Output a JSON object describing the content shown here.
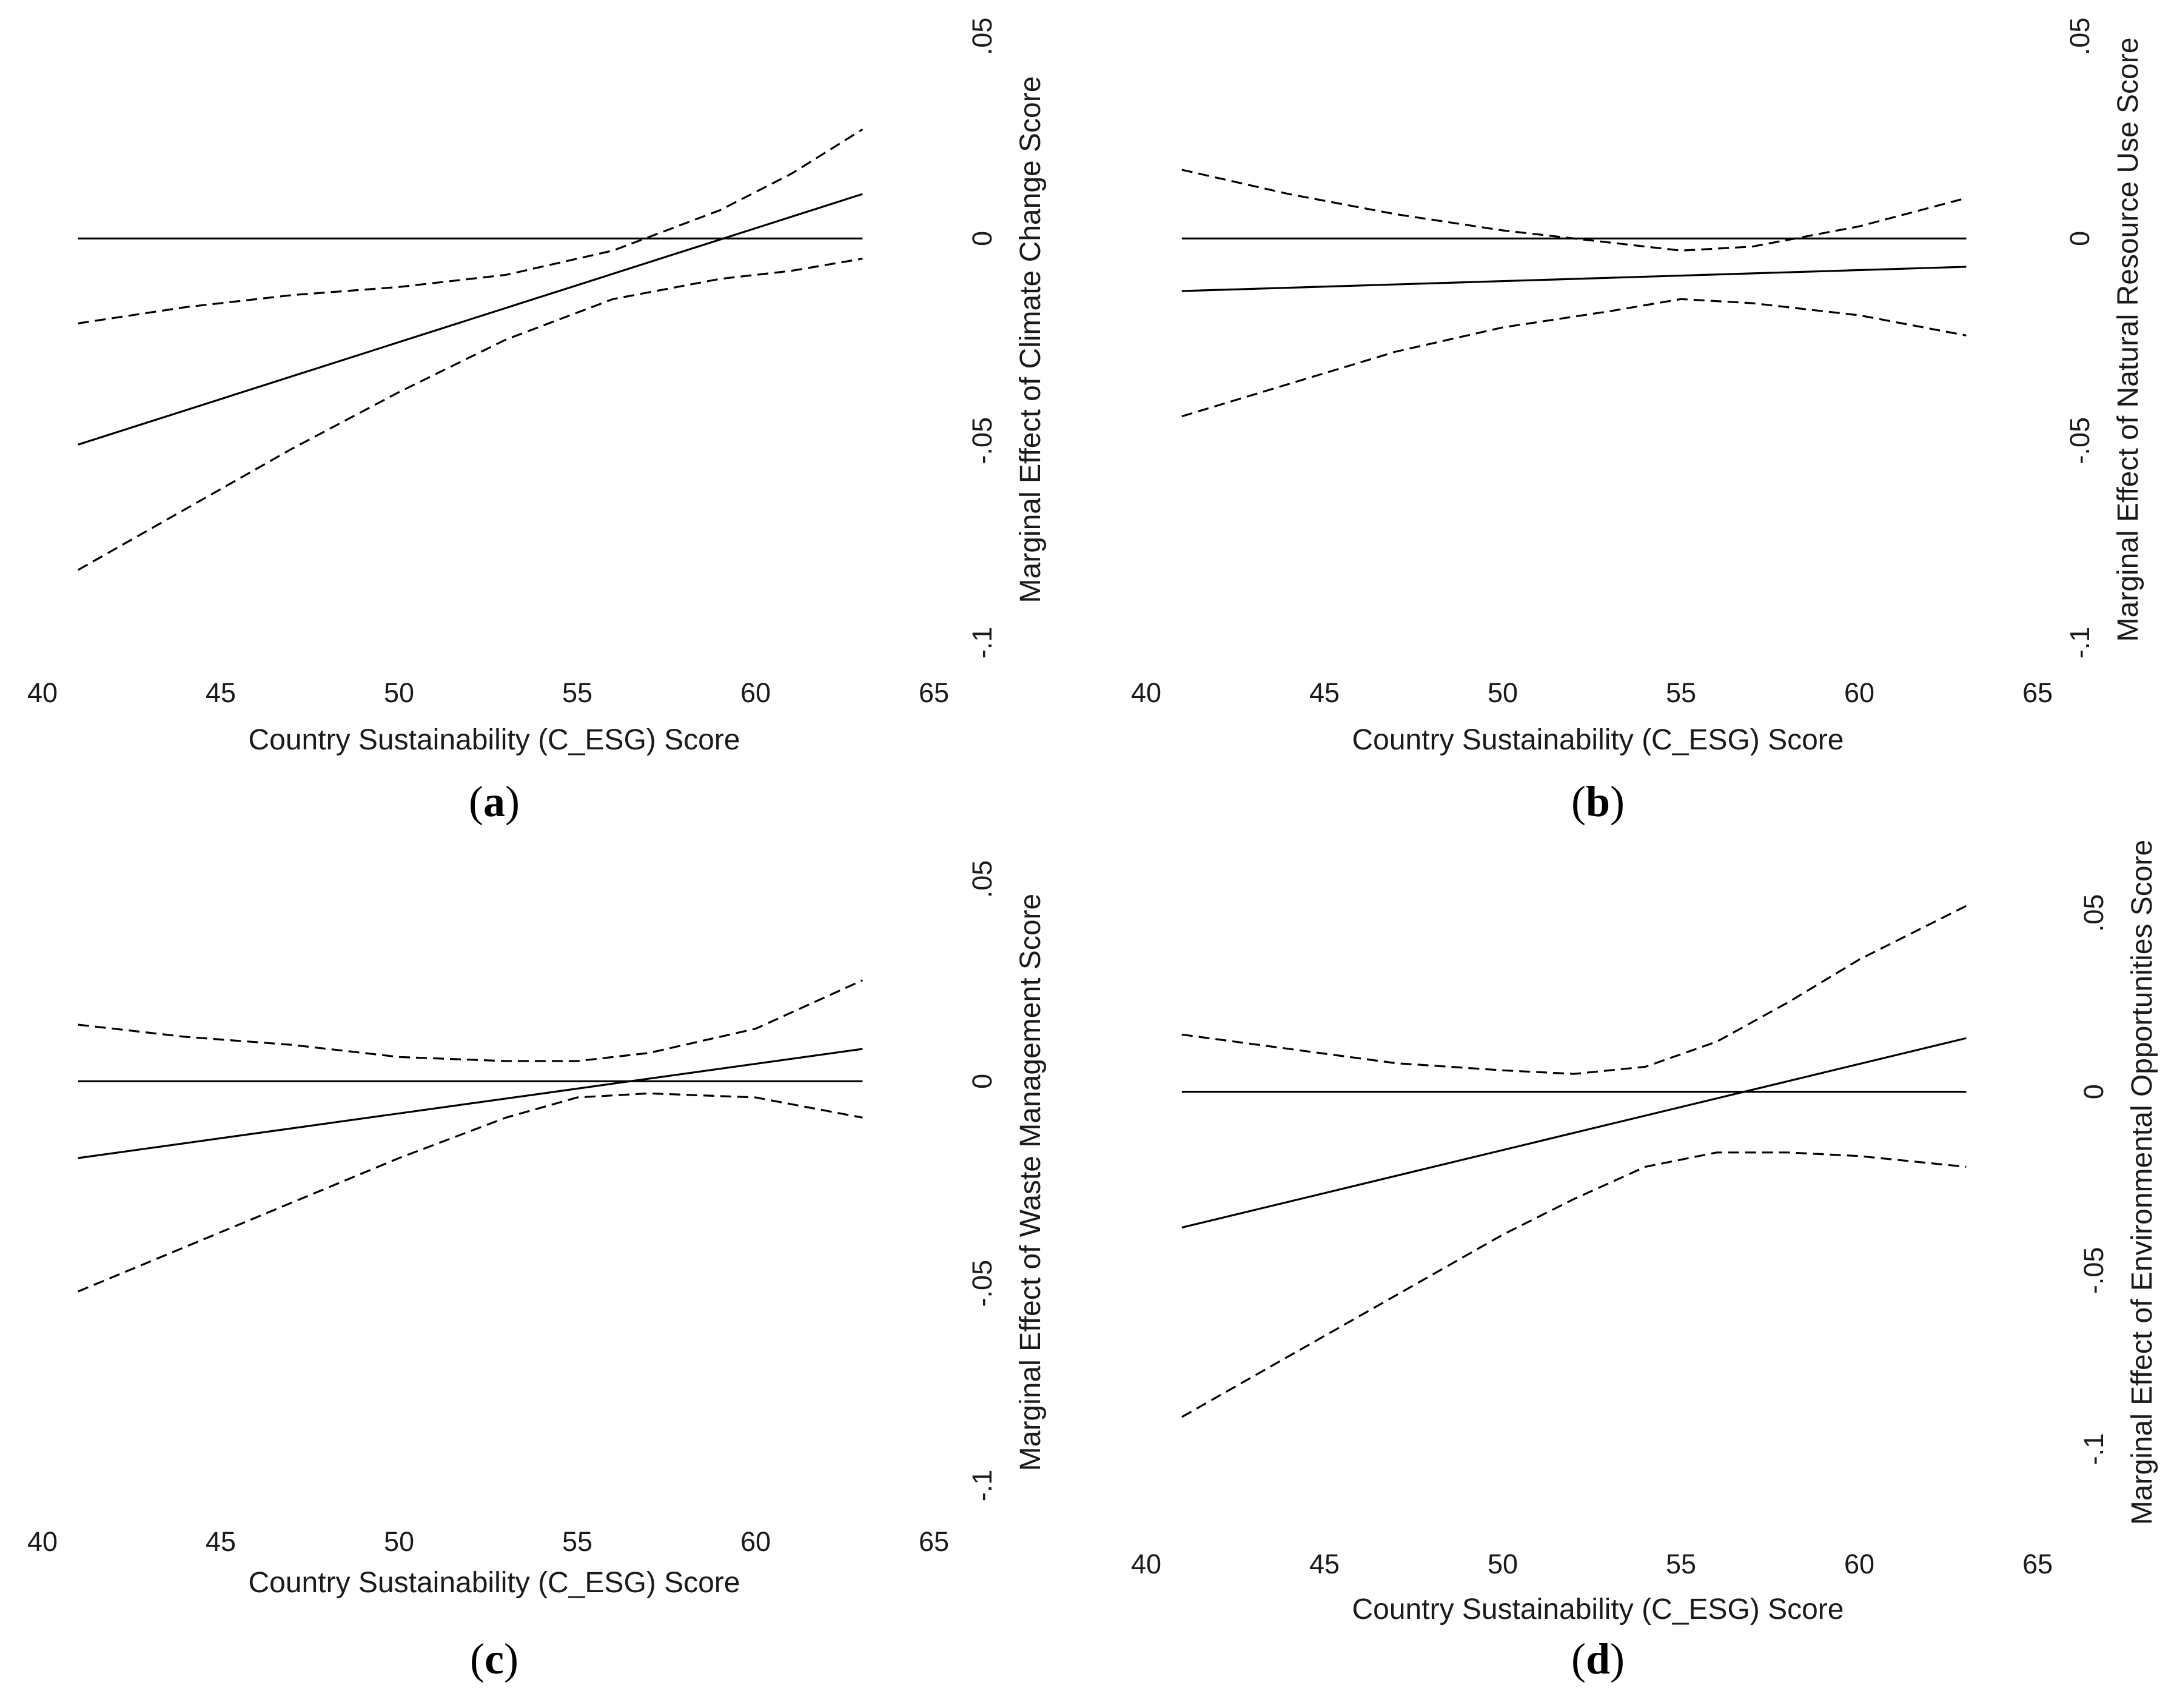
{
  "figure": {
    "background": "#ffffff",
    "line_color": "#000000"
  },
  "chart_data": [
    {
      "id": "a",
      "type": "line",
      "panel_label": "a",
      "title": "",
      "xlabel": "Country Sustainability (C_ESG) Score",
      "ylabel": "Marginal Effect of Climate Change Score",
      "xlim": [
        40,
        65
      ],
      "ylim": [
        -0.1,
        0.05
      ],
      "xticks": [
        40,
        45,
        50,
        55,
        60,
        65
      ],
      "xtick_labels": [
        "40",
        "45",
        "50",
        "55",
        "60",
        "65"
      ],
      "yticks": [
        0.05,
        0,
        -0.05,
        -0.1
      ],
      "ytick_labels": [
        ".05",
        "0",
        "-.05",
        "-.1"
      ],
      "series": [
        {
          "name": "zero line",
          "style": "solid",
          "x": [
            41,
            63
          ],
          "y": [
            0,
            0
          ]
        },
        {
          "name": "marginal effect",
          "style": "solid",
          "x": [
            41,
            63
          ],
          "y": [
            -0.051,
            0.011
          ]
        },
        {
          "name": "upper bound",
          "style": "dashed",
          "x": [
            41,
            44,
            47,
            50,
            53,
            56,
            59,
            61,
            63
          ],
          "y": [
            -0.021,
            -0.017,
            -0.014,
            -0.012,
            -0.009,
            -0.003,
            0.007,
            0.016,
            0.027
          ]
        },
        {
          "name": "lower bound",
          "style": "dashed",
          "x": [
            41,
            44,
            47,
            50,
            53,
            56,
            59,
            61,
            63
          ],
          "y": [
            -0.082,
            -0.067,
            -0.052,
            -0.038,
            -0.025,
            -0.015,
            -0.01,
            -0.008,
            -0.005
          ]
        }
      ]
    },
    {
      "id": "b",
      "type": "line",
      "panel_label": "b",
      "title": "",
      "xlabel": "Country Sustainability (C_ESG) Score",
      "ylabel": "Marginal Effect of Natural Resource Use Score",
      "xlim": [
        40,
        65
      ],
      "ylim": [
        -0.1,
        0.05
      ],
      "xticks": [
        40,
        45,
        50,
        55,
        60,
        65
      ],
      "xtick_labels": [
        "40",
        "45",
        "50",
        "55",
        "60",
        "65"
      ],
      "yticks": [
        0.05,
        0,
        -0.05,
        -0.1
      ],
      "ytick_labels": [
        ".05",
        "0",
        "-.05",
        "-.1"
      ],
      "series": [
        {
          "name": "zero line",
          "style": "solid",
          "x": [
            41,
            63
          ],
          "y": [
            0,
            0
          ]
        },
        {
          "name": "marginal effect",
          "style": "solid",
          "x": [
            41,
            63
          ],
          "y": [
            -0.013,
            -0.007
          ]
        },
        {
          "name": "upper bound",
          "style": "dashed",
          "x": [
            41,
            44,
            47,
            50,
            53,
            55,
            57,
            60,
            63
          ],
          "y": [
            0.017,
            0.011,
            0.006,
            0.002,
            -0.001,
            -0.003,
            -0.002,
            0.003,
            0.01
          ]
        },
        {
          "name": "lower bound",
          "style": "dashed",
          "x": [
            41,
            44,
            47,
            50,
            53,
            55,
            57,
            60,
            63
          ],
          "y": [
            -0.044,
            -0.036,
            -0.028,
            -0.022,
            -0.018,
            -0.015,
            -0.016,
            -0.019,
            -0.024
          ]
        }
      ]
    },
    {
      "id": "c",
      "type": "line",
      "panel_label": "c",
      "title": "",
      "xlabel": "Country Sustainability (C_ESG) Score",
      "ylabel": "Marginal Effect of Waste Management Score",
      "xlim": [
        40,
        65
      ],
      "ylim": [
        -0.1,
        0.05
      ],
      "xticks": [
        40,
        45,
        50,
        55,
        60,
        65
      ],
      "xtick_labels": [
        "40",
        "45",
        "50",
        "55",
        "60",
        "65"
      ],
      "yticks": [
        0.05,
        0,
        -0.05,
        -0.1
      ],
      "ytick_labels": [
        ".05",
        "0",
        "-.05",
        "-.1"
      ],
      "series": [
        {
          "name": "zero line",
          "style": "solid",
          "x": [
            41,
            63
          ],
          "y": [
            0,
            0
          ]
        },
        {
          "name": "marginal effect",
          "style": "solid",
          "x": [
            41,
            63
          ],
          "y": [
            -0.019,
            0.008
          ]
        },
        {
          "name": "upper bound",
          "style": "dashed",
          "x": [
            41,
            44,
            47,
            50,
            53,
            55,
            57,
            60,
            63
          ],
          "y": [
            0.014,
            0.011,
            0.009,
            0.006,
            0.005,
            0.005,
            0.007,
            0.013,
            0.025
          ]
        },
        {
          "name": "lower bound",
          "style": "dashed",
          "x": [
            41,
            44,
            47,
            50,
            53,
            55,
            57,
            60,
            63
          ],
          "y": [
            -0.052,
            -0.041,
            -0.03,
            -0.019,
            -0.009,
            -0.004,
            -0.003,
            -0.004,
            -0.009
          ]
        }
      ]
    },
    {
      "id": "d",
      "type": "line",
      "panel_label": "d",
      "title": "",
      "xlabel": "Country Sustainability (C_ESG) Score",
      "ylabel": "Marginal Effect of Environmental Opportunities Score",
      "xlim": [
        40,
        65
      ],
      "ylim": [
        -0.12,
        0.07
      ],
      "xticks": [
        40,
        45,
        50,
        55,
        60,
        65
      ],
      "xtick_labels": [
        "40",
        "45",
        "50",
        "55",
        "60",
        "65"
      ],
      "yticks": [
        0.05,
        0,
        -0.05,
        -0.1
      ],
      "ytick_labels": [
        ".05",
        "0",
        "-.05",
        "-.1"
      ],
      "series": [
        {
          "name": "zero line",
          "style": "solid",
          "x": [
            41,
            63
          ],
          "y": [
            0,
            0
          ]
        },
        {
          "name": "marginal effect",
          "style": "solid",
          "x": [
            41,
            63
          ],
          "y": [
            -0.038,
            0.015
          ]
        },
        {
          "name": "upper bound",
          "style": "dashed",
          "x": [
            41,
            44,
            47,
            50,
            52,
            54,
            56,
            58,
            60,
            63
          ],
          "y": [
            0.016,
            0.012,
            0.008,
            0.006,
            0.005,
            0.007,
            0.014,
            0.025,
            0.037,
            0.052
          ]
        },
        {
          "name": "lower bound",
          "style": "dashed",
          "x": [
            41,
            44,
            47,
            50,
            52,
            54,
            56,
            58,
            60,
            63
          ],
          "y": [
            -0.091,
            -0.074,
            -0.057,
            -0.04,
            -0.03,
            -0.021,
            -0.017,
            -0.017,
            -0.018,
            -0.021
          ]
        }
      ]
    }
  ]
}
